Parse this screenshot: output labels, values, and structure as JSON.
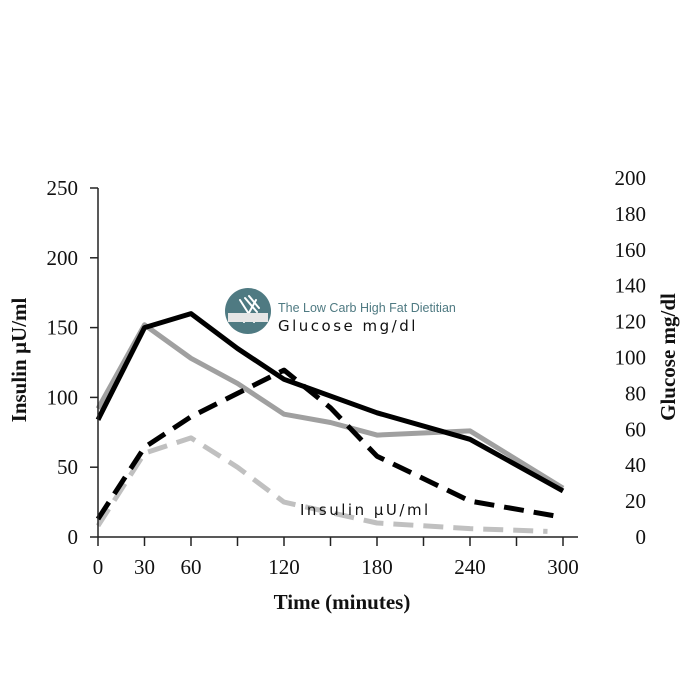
{
  "chart_data": {
    "type": "line",
    "xlabel": "Time (minutes)",
    "ylabel": "Insulin µU/ml",
    "y2label": "Glucose mg/dl",
    "xlim": [
      0,
      300
    ],
    "ylim": [
      0,
      250
    ],
    "y2lim": [
      0,
      200
    ],
    "xticks": [
      0,
      30,
      60,
      120,
      180,
      240,
      300
    ],
    "yticks": [
      0,
      50,
      100,
      150,
      200,
      250
    ],
    "y2ticks": [
      0,
      20,
      40,
      60,
      80,
      100,
      120,
      140,
      160,
      180,
      200
    ],
    "grid": false,
    "annotations": [
      {
        "text": "Glucose mg/dl",
        "series": "glucose"
      },
      {
        "text": "Insulin µU/ml",
        "series": "insulin"
      }
    ],
    "series": [
      {
        "name": "",
        "axis": "left",
        "color": "#000000",
        "dash": "solid",
        "x": [
          0,
          30,
          60,
          90,
          120,
          180,
          240,
          300
        ],
        "y": [
          84,
          150,
          160,
          135,
          113,
          89,
          70,
          33
        ]
      },
      {
        "name": "",
        "axis": "right",
        "color": "#000000",
        "dash": "dashed",
        "x": [
          0,
          30,
          60,
          90,
          120,
          150,
          180,
          240,
          300
        ],
        "y": [
          10,
          50,
          67,
          80,
          93,
          72,
          45,
          20,
          11
        ]
      },
      {
        "name": "",
        "axis": "left",
        "color": "#a0a0a0",
        "dash": "solid",
        "x": [
          0,
          30,
          60,
          90,
          120,
          150,
          180,
          240,
          300
        ],
        "y": [
          92,
          152,
          128,
          110,
          88,
          82,
          73,
          76,
          35
        ]
      },
      {
        "name": "",
        "axis": "left",
        "color": "#c0c0c0",
        "dash": "dashed",
        "x": [
          0,
          30,
          60,
          90,
          120,
          180,
          240,
          290
        ],
        "y": [
          8,
          60,
          71,
          50,
          25,
          10,
          6,
          4
        ]
      }
    ]
  },
  "watermark": {
    "text": "The Low Carb High Fat Dietitian",
    "icon": "fork-knife-icon",
    "color": "#4f7a82"
  }
}
